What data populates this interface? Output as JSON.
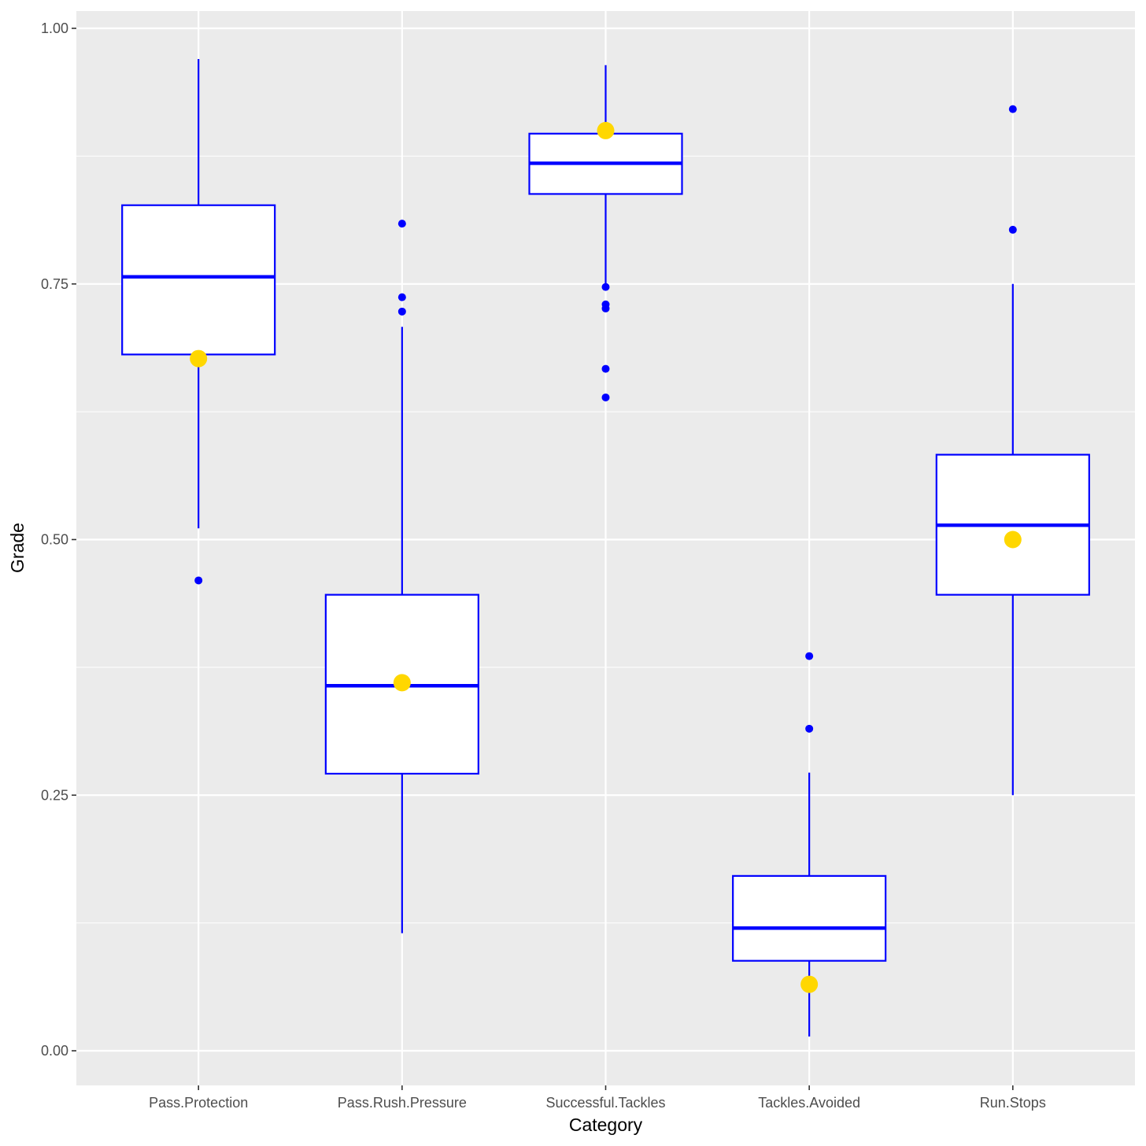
{
  "chart_data": {
    "type": "boxplot",
    "xlabel": "Category",
    "ylabel": "Grade",
    "ylim": [
      -0.033,
      1.017
    ],
    "yticks": [
      0.0,
      0.25,
      0.5,
      0.75,
      1.0
    ],
    "ytick_labels": [
      "0.00",
      "0.25",
      "0.50",
      "0.75",
      "1.00"
    ],
    "grid": true,
    "colors": {
      "panel_background": "#EBEBEB",
      "grid": "#FFFFFF",
      "box_fill": "#FFFFFF",
      "box_outline": "#0000FF",
      "outlier": "#0000FF",
      "highlight_point": "#FFD700"
    },
    "categories": [
      "Pass.Protection",
      "Pass.Rush.Pressure",
      "Successful.Tackles",
      "Tackles.Avoided",
      "Run.Stops"
    ],
    "boxes": [
      {
        "category": "Pass.Protection",
        "whisker_low": 0.511,
        "q1": 0.681,
        "median": 0.757,
        "q3": 0.827,
        "whisker_high": 0.97,
        "outliers": [
          0.46
        ],
        "highlight": 0.677
      },
      {
        "category": "Pass.Rush.Pressure",
        "whisker_low": 0.115,
        "q1": 0.271,
        "median": 0.357,
        "q3": 0.446,
        "whisker_high": 0.708,
        "outliers": [
          0.809,
          0.737,
          0.723
        ],
        "highlight": 0.36
      },
      {
        "category": "Successful.Tackles",
        "whisker_low": 0.75,
        "q1": 0.838,
        "median": 0.868,
        "q3": 0.897,
        "whisker_high": 0.964,
        "outliers": [
          0.747,
          0.73,
          0.726,
          0.667,
          0.639
        ],
        "highlight": 0.9
      },
      {
        "category": "Tackles.Avoided",
        "whisker_low": 0.014,
        "q1": 0.088,
        "median": 0.12,
        "q3": 0.171,
        "whisker_high": 0.272,
        "outliers": [
          0.386,
          0.315
        ],
        "highlight": 0.065
      },
      {
        "category": "Run.Stops",
        "whisker_low": 0.25,
        "q1": 0.446,
        "median": 0.514,
        "q3": 0.583,
        "whisker_high": 0.75,
        "outliers": [
          0.921,
          0.803
        ],
        "highlight": 0.5
      }
    ]
  }
}
